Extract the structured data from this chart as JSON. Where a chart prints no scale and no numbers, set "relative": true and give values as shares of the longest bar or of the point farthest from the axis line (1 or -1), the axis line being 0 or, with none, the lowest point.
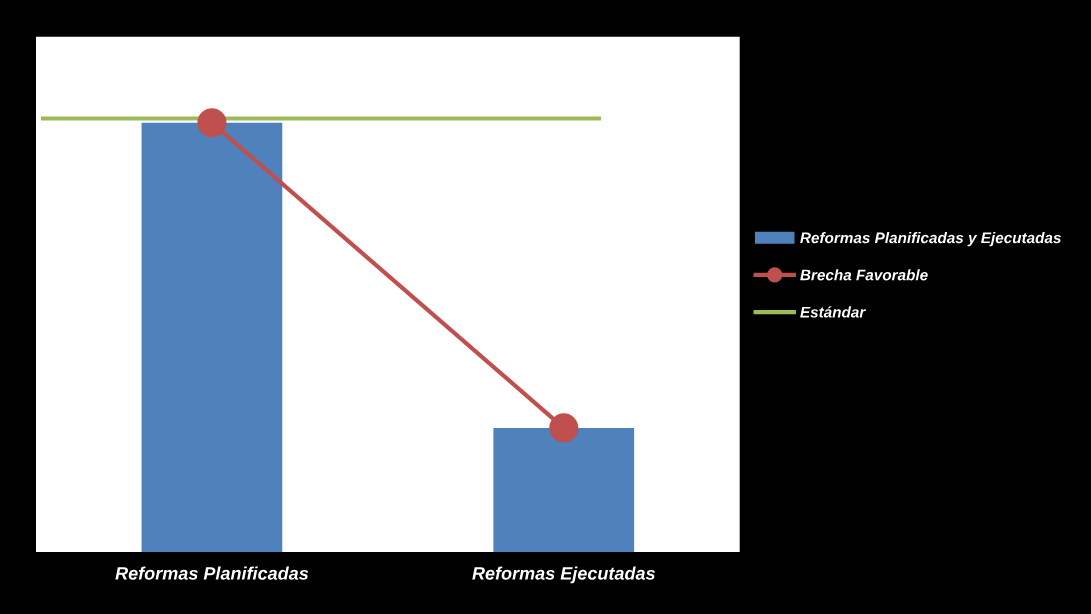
{
  "chart_data": {
    "type": "bar",
    "relative": true,
    "categories": [
      "Reformas Planificadas",
      "Reformas Ejecutadas"
    ],
    "series": [
      {
        "name": "Reformas Planificadas y Ejecutadas",
        "color": "#4f81bd",
        "values": [
          1.0,
          0.29
        ]
      },
      {
        "name": "Brecha Favorable",
        "type": "line",
        "color": "#c0504d",
        "marker": "circle",
        "values": [
          1.0,
          0.29
        ]
      }
    ],
    "ref_lines": [
      {
        "axis": "y",
        "value": 1.01,
        "label": "Estándar",
        "color": "#9bbb59"
      }
    ],
    "legend": "right",
    "grid": false
  }
}
